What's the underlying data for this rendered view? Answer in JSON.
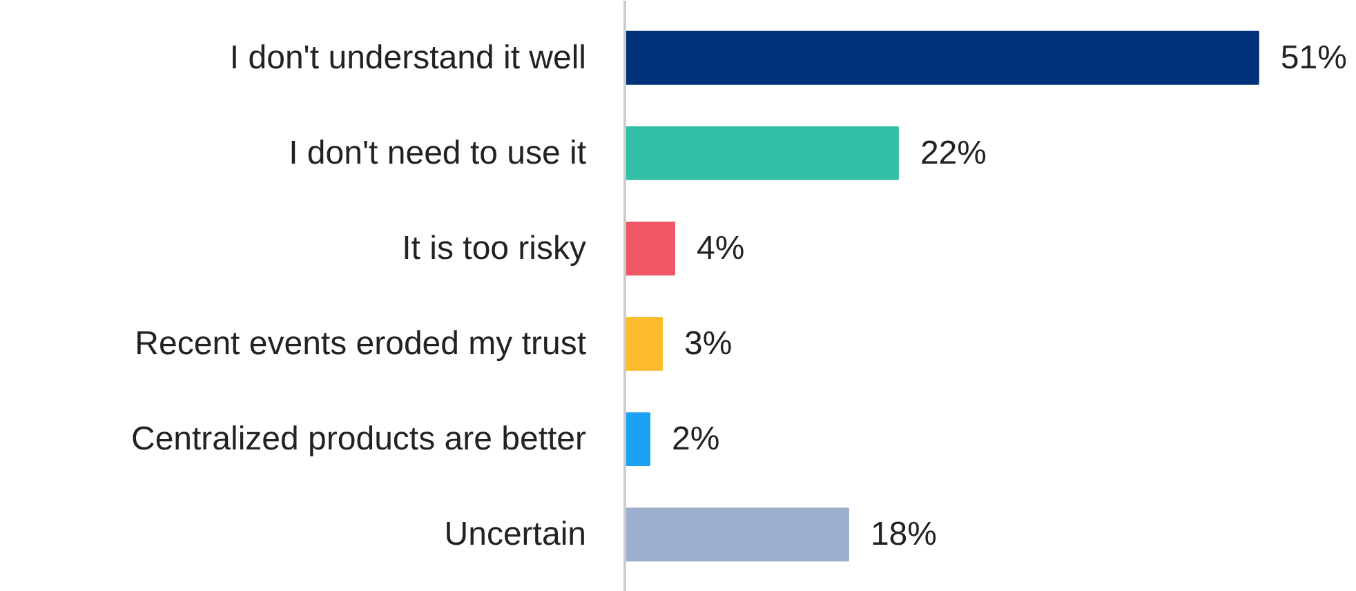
{
  "chart_data": {
    "type": "bar",
    "orientation": "horizontal",
    "categories": [
      "I don't understand it well",
      "I don't need to use it",
      "It is too risky",
      "Recent events eroded my trust",
      "Centralized products are better",
      "Uncertain"
    ],
    "values": [
      51,
      22,
      4,
      3,
      2,
      18
    ],
    "colors": [
      "#003078",
      "#33bfa5",
      "#ef5766",
      "#fdbb2e",
      "#1da1f2",
      "#9cafce"
    ],
    "value_labels": [
      "51%",
      "22%",
      "4%",
      "3%",
      "2%",
      "18%"
    ],
    "grid": false
  }
}
